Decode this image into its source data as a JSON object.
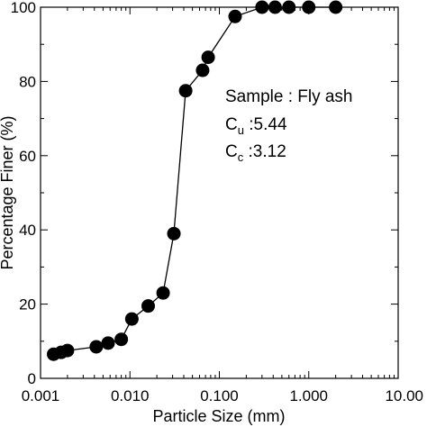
{
  "chart_data": {
    "type": "scatter",
    "xlabel": "Particle Size (mm)",
    "ylabel": "Percentage Finer (%)",
    "xscale": "log",
    "xlim": [
      0.001,
      10
    ],
    "ylim": [
      0,
      100
    ],
    "xticks": [
      0.001,
      0.01,
      0.1,
      1,
      10
    ],
    "xtick_labels": [
      "0.001",
      "0.010",
      "0.100",
      "1.000",
      "10.00"
    ],
    "yticks": [
      0,
      20,
      40,
      60,
      80,
      100
    ],
    "ytick_labels": [
      "0",
      "20",
      "40",
      "60",
      "80",
      "100"
    ],
    "grid": false,
    "series": [
      {
        "color": "#000000",
        "x": [
          0.0014,
          0.0017,
          0.002,
          0.0042,
          0.0057,
          0.008,
          0.0105,
          0.016,
          0.0235,
          0.031,
          0.042,
          0.065,
          0.075,
          0.15,
          0.3,
          0.42,
          0.6,
          1.0,
          2.0
        ],
        "y": [
          6.5,
          7,
          7.5,
          8.5,
          9.5,
          10.5,
          16,
          19.5,
          23,
          39,
          77.5,
          83,
          86.5,
          97.5,
          100,
          100,
          100,
          100,
          100
        ]
      }
    ],
    "annotations": {
      "sample": "Sample : Fly ash",
      "cu_main": "C",
      "cu_sub": "u",
      "cu_value": " :5.44",
      "cc_main": "C",
      "cc_sub": "c",
      "cc_value": " :3.12"
    }
  }
}
